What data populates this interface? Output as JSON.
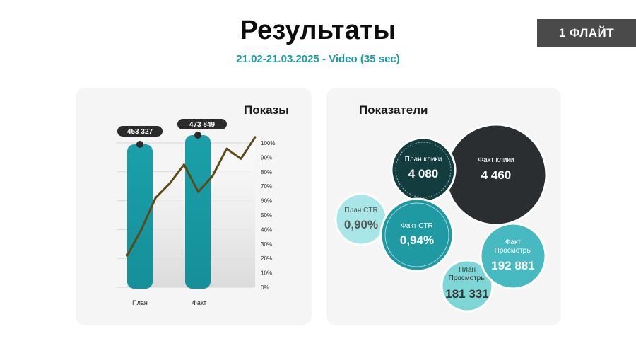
{
  "header": {
    "title": "Результаты",
    "subtitle": "21.02-21.03.2025 - Video (35 sec)",
    "badge": "1 ФЛАЙТ"
  },
  "impressions_card": {
    "title": "Показы"
  },
  "metrics_card": {
    "title": "Показатели",
    "bubbles": [
      {
        "label_lines": [
          "Факт клики"
        ],
        "value": "4 460",
        "color": "#2a2e31"
      },
      {
        "label_lines": [
          "План клики"
        ],
        "value": "4 080",
        "color": "#123c3e"
      },
      {
        "label_lines": [
          "План CTR"
        ],
        "value": "0,90%",
        "color": "#a9e6e8"
      },
      {
        "label_lines": [
          "Факт CTR"
        ],
        "value": "0,94%",
        "color": "#1f9aa3"
      },
      {
        "label_lines": [
          "Факт",
          "Просмотры"
        ],
        "value": "192 881",
        "color": "#46bac0"
      },
      {
        "label_lines": [
          "План",
          "Просмотры"
        ],
        "value": "181 331",
        "color": "#7fd6d6"
      }
    ]
  },
  "chart_data": {
    "type": "bar",
    "title": "Показы",
    "categories": [
      "План",
      "Факт"
    ],
    "values": [
      453327,
      473849
    ],
    "data_labels": [
      "453 327",
      "473 849"
    ],
    "y2_ticks": [
      "0%",
      "10%",
      "20%",
      "30%",
      "40%",
      "50%",
      "60%",
      "70%",
      "80%",
      "90%",
      "100%"
    ],
    "ylim_pct": [
      0,
      100
    ],
    "line_pct": [
      22,
      40,
      62,
      72,
      85,
      66,
      77,
      96,
      89,
      104
    ],
    "colors": {
      "bar": "#1a9aa5",
      "line": "#5c4a16",
      "label_bg": "#2b2b2b"
    }
  }
}
